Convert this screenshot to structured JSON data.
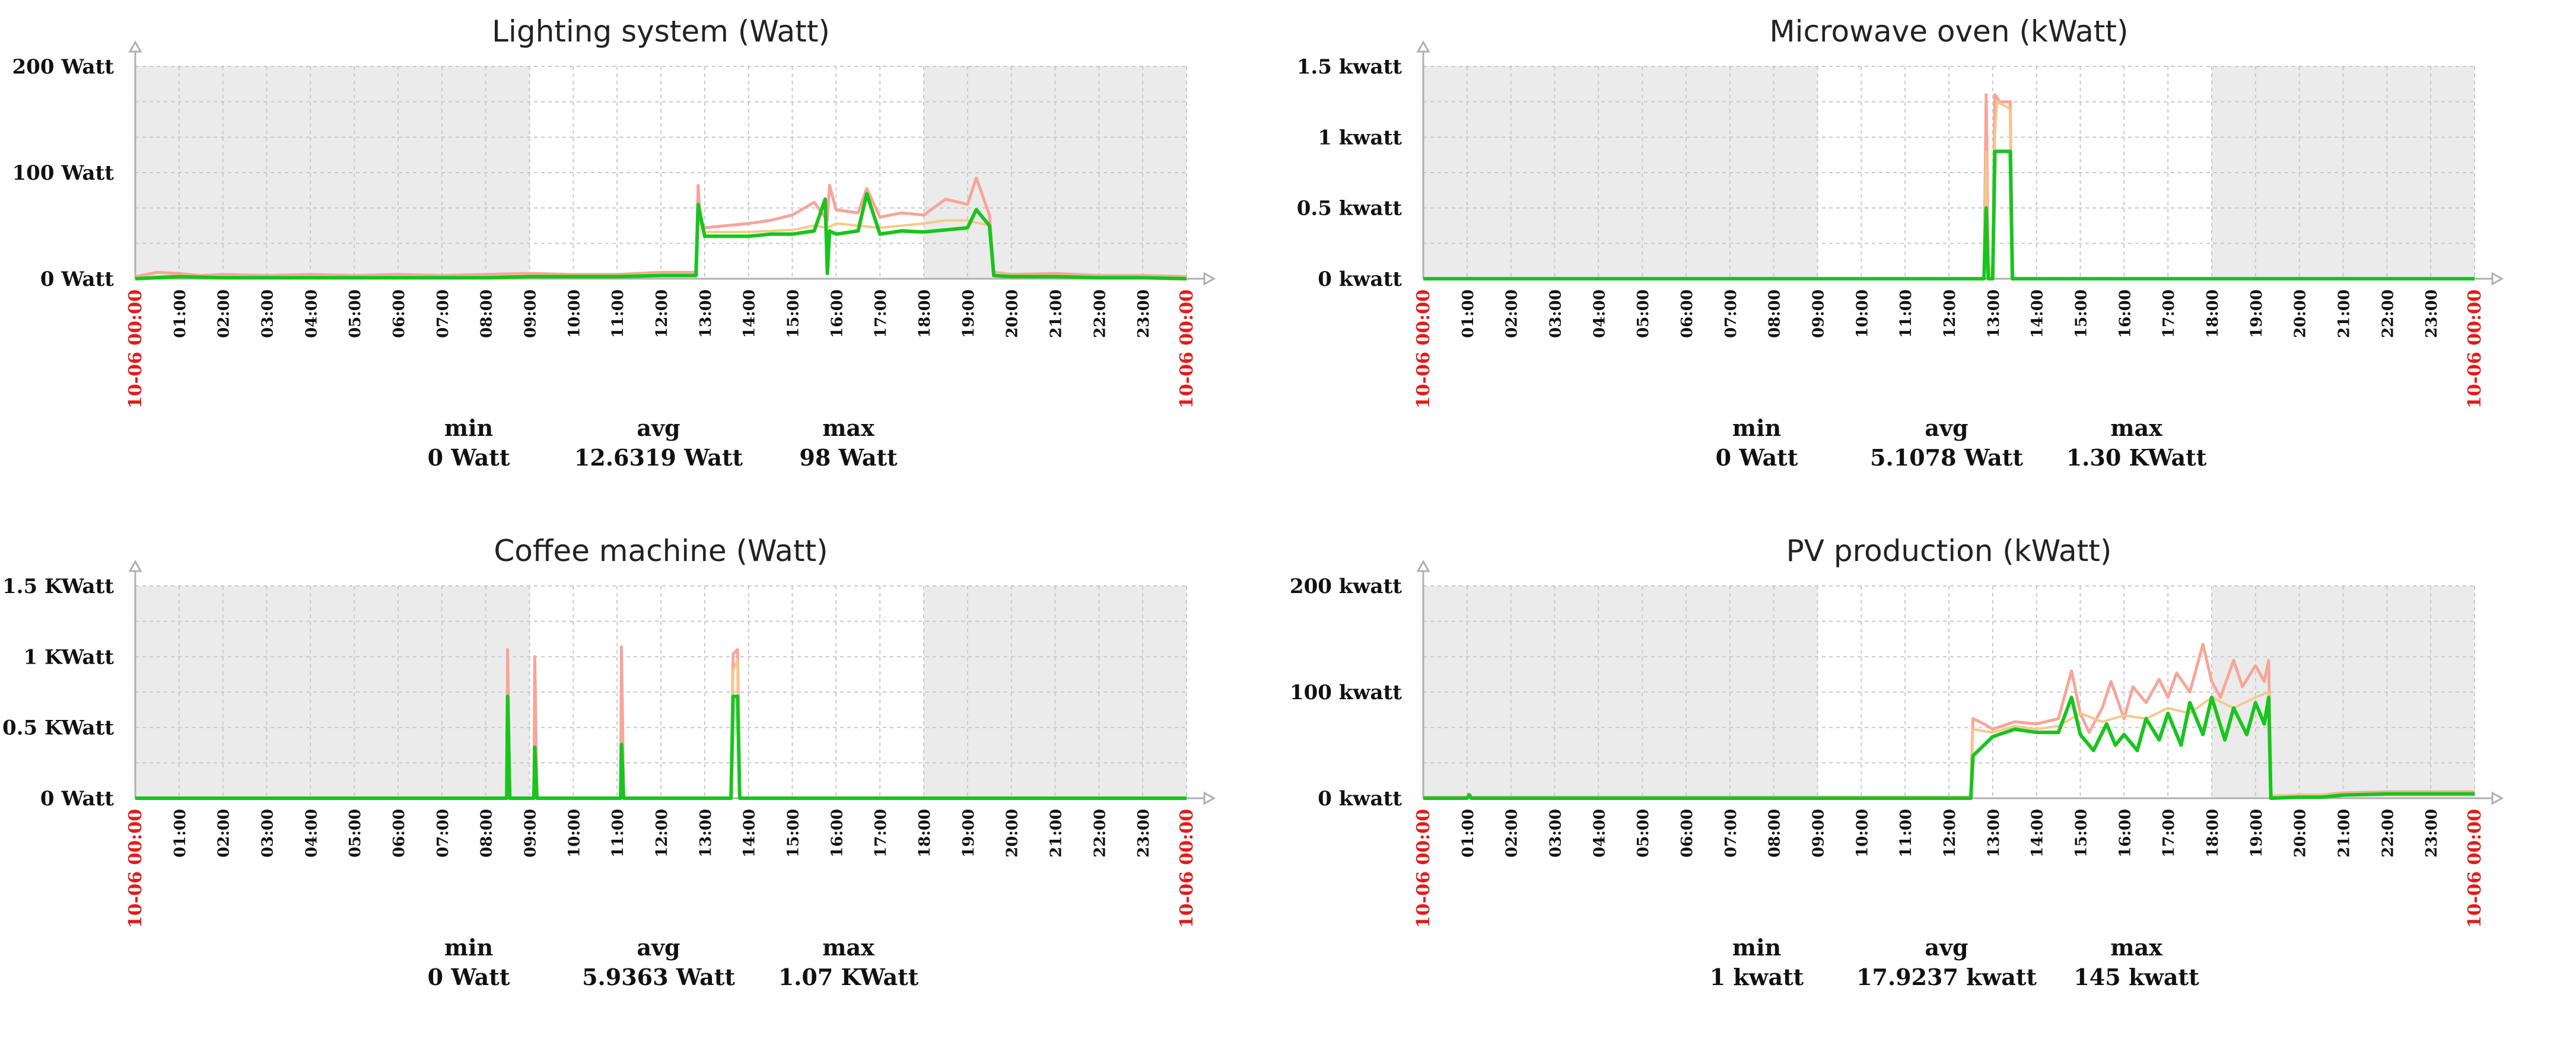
{
  "colors": {
    "night_shade": "#ebebeb",
    "grid": "#c9c9c9",
    "max_line": "#f7a59a",
    "avg_line": "#f5c88a",
    "min_line": "#17c51c",
    "edge_label": "#e41a1a",
    "axis": "#b0b0b0"
  },
  "chart_data": [
    {
      "type": "line",
      "title": "Lighting system (Watt)",
      "ylim": [
        0,
        200
      ],
      "y_ticks": [
        {
          "value": 0,
          "label": "0 Watt"
        },
        {
          "value": 100,
          "label": "100 Watt"
        },
        {
          "value": 200,
          "label": "200 Watt"
        }
      ],
      "xlim": [
        0,
        24
      ],
      "x_ticks": [
        "10-06 00:00",
        "01:00",
        "02:00",
        "03:00",
        "04:00",
        "05:00",
        "06:00",
        "07:00",
        "08:00",
        "09:00",
        "10:00",
        "11:00",
        "12:00",
        "13:00",
        "14:00",
        "15:00",
        "16:00",
        "17:00",
        "18:00",
        "19:00",
        "20:00",
        "21:00",
        "22:00",
        "23:00",
        "10-06 00:00"
      ],
      "shaded_ranges": [
        [
          0,
          9
        ],
        [
          18,
          24
        ]
      ],
      "grid": true,
      "series": [
        {
          "name": "max",
          "x": [
            0,
            0.5,
            1,
            1.5,
            2,
            3,
            4,
            5,
            6,
            7,
            8,
            9,
            10,
            11,
            12,
            12.8,
            12.85,
            12.9,
            13,
            14,
            14.5,
            15,
            15.5,
            15.8,
            15.85,
            16,
            16.5,
            16.7,
            17,
            17.5,
            18,
            18.5,
            19,
            19.2,
            19.5,
            19.6,
            20,
            21,
            22,
            23,
            24
          ],
          "y": [
            2,
            6,
            5,
            3,
            4,
            3,
            4,
            3,
            4,
            3,
            4,
            5,
            4,
            4,
            6,
            6,
            88,
            55,
            48,
            52,
            55,
            60,
            72,
            55,
            88,
            65,
            62,
            85,
            58,
            62,
            60,
            75,
            70,
            95,
            60,
            6,
            4,
            5,
            3,
            3,
            2
          ]
        },
        {
          "name": "avg",
          "x": [
            0,
            1,
            2,
            3,
            4,
            5,
            6,
            7,
            8,
            9,
            10,
            11,
            12,
            12.8,
            12.85,
            13,
            14,
            15,
            15.5,
            15.8,
            16,
            16.5,
            17,
            17.5,
            18,
            18.5,
            19,
            19.5,
            19.6,
            20,
            21,
            22,
            23,
            24
          ],
          "y": [
            1,
            3,
            2,
            2,
            2,
            2,
            2,
            2,
            2,
            3,
            3,
            3,
            4,
            4,
            55,
            44,
            44,
            46,
            50,
            48,
            52,
            50,
            48,
            50,
            52,
            55,
            55,
            50,
            5,
            3,
            3,
            2,
            2,
            1
          ]
        },
        {
          "name": "min",
          "x": [
            0,
            1,
            2,
            3,
            4,
            5,
            6,
            7,
            8,
            9,
            10,
            11,
            12,
            12.8,
            12.85,
            13,
            13.5,
            14,
            14.5,
            15,
            15.5,
            15.75,
            15.8,
            15.85,
            16,
            16.5,
            16.7,
            17,
            17.5,
            18,
            18.5,
            19,
            19.2,
            19.5,
            19.6,
            20,
            21,
            22,
            23,
            24
          ],
          "y": [
            0,
            2,
            1,
            1,
            1,
            1,
            1,
            1,
            1,
            2,
            2,
            2,
            3,
            3,
            70,
            40,
            40,
            40,
            42,
            42,
            45,
            75,
            5,
            45,
            42,
            45,
            80,
            42,
            45,
            44,
            46,
            48,
            65,
            50,
            3,
            2,
            2,
            1,
            1,
            0
          ]
        }
      ],
      "stats": {
        "min_label": "min",
        "avg_label": "avg",
        "max_label": "max",
        "min": "0 Watt",
        "avg": "12.6319 Watt",
        "max": "98 Watt"
      }
    },
    {
      "type": "line",
      "title": "Microwave oven (kWatt)",
      "ylim": [
        0,
        1.5
      ],
      "y_ticks": [
        {
          "value": 0,
          "label": "0 kwatt"
        },
        {
          "value": 0.5,
          "label": "0.5 kwatt"
        },
        {
          "value": 1,
          "label": "1 kwatt"
        },
        {
          "value": 1.5,
          "label": "1.5 kwatt"
        }
      ],
      "xlim": [
        0,
        24
      ],
      "x_ticks": [
        "10-06 00:00",
        "01:00",
        "02:00",
        "03:00",
        "04:00",
        "05:00",
        "06:00",
        "07:00",
        "08:00",
        "09:00",
        "10:00",
        "11:00",
        "12:00",
        "13:00",
        "14:00",
        "15:00",
        "16:00",
        "17:00",
        "18:00",
        "19:00",
        "20:00",
        "21:00",
        "22:00",
        "23:00",
        "10-06 00:00"
      ],
      "shaded_ranges": [
        [
          0,
          9
        ],
        [
          18,
          24
        ]
      ],
      "grid": true,
      "series": [
        {
          "name": "max",
          "x": [
            0,
            12.8,
            12.85,
            12.9,
            13.0,
            13.05,
            13.1,
            13.15,
            13.4,
            13.45,
            24
          ],
          "y": [
            0,
            0,
            1.3,
            0.1,
            0,
            1.3,
            1.28,
            1.25,
            1.25,
            0,
            0
          ]
        },
        {
          "name": "avg",
          "x": [
            0,
            12.8,
            12.85,
            12.9,
            13.0,
            13.05,
            13.1,
            13.4,
            13.45,
            24
          ],
          "y": [
            0,
            0,
            0.9,
            0.1,
            0,
            1.0,
            1.25,
            1.2,
            0,
            0
          ]
        },
        {
          "name": "min",
          "x": [
            0,
            12.8,
            12.85,
            12.9,
            13.0,
            13.05,
            13.4,
            13.45,
            24
          ],
          "y": [
            0,
            0,
            0.5,
            0,
            0,
            0.9,
            0.9,
            0,
            0
          ]
        }
      ],
      "stats": {
        "min_label": "min",
        "avg_label": "avg",
        "max_label": "max",
        "min": "0 Watt",
        "avg": "5.1078 Watt",
        "max": "1.30 KWatt"
      }
    },
    {
      "type": "line",
      "title": "Coffee machine (Watt)",
      "ylim": [
        0,
        1.5
      ],
      "y_ticks": [
        {
          "value": 0,
          "label": "0 Watt"
        },
        {
          "value": 0.5,
          "label": "0.5 KWatt"
        },
        {
          "value": 1,
          "label": "1 KWatt"
        },
        {
          "value": 1.5,
          "label": "1.5 KWatt"
        }
      ],
      "xlim": [
        0,
        24
      ],
      "x_ticks": [
        "10-06 00:00",
        "01:00",
        "02:00",
        "03:00",
        "04:00",
        "05:00",
        "06:00",
        "07:00",
        "08:00",
        "09:00",
        "10:00",
        "11:00",
        "12:00",
        "13:00",
        "14:00",
        "15:00",
        "16:00",
        "17:00",
        "18:00",
        "19:00",
        "20:00",
        "21:00",
        "22:00",
        "23:00",
        "10-06 00:00"
      ],
      "shaded_ranges": [
        [
          0,
          9
        ],
        [
          18,
          24
        ]
      ],
      "grid": true,
      "series": [
        {
          "name": "max",
          "x": [
            0,
            8.48,
            8.5,
            8.55,
            9.1,
            9.12,
            9.17,
            11.08,
            11.1,
            11.15,
            13.6,
            13.65,
            13.75,
            13.8,
            24
          ],
          "y": [
            0,
            0,
            1.05,
            0,
            0,
            1.0,
            0,
            0,
            1.07,
            0,
            0,
            1.02,
            1.05,
            0,
            0
          ]
        },
        {
          "name": "avg",
          "x": [
            0,
            13.6,
            13.65,
            13.75,
            13.8,
            24
          ],
          "y": [
            0,
            0,
            0.9,
            0.98,
            0,
            0
          ]
        },
        {
          "name": "min",
          "x": [
            0,
            8.48,
            8.5,
            8.55,
            9.1,
            9.12,
            9.17,
            11.08,
            11.1,
            11.15,
            13.6,
            13.65,
            13.75,
            13.8,
            24
          ],
          "y": [
            0,
            0,
            0.72,
            0,
            0,
            0.36,
            0,
            0,
            0.38,
            0,
            0,
            0.72,
            0.72,
            0,
            0
          ]
        }
      ],
      "stats": {
        "min_label": "min",
        "avg_label": "avg",
        "max_label": "max",
        "min": "0 Watt",
        "avg": "5.9363 Watt",
        "max": "1.07 KWatt"
      }
    },
    {
      "type": "line",
      "title": "PV production (kWatt)",
      "ylim": [
        0,
        200
      ],
      "y_ticks": [
        {
          "value": 0,
          "label": "0 kwatt"
        },
        {
          "value": 100,
          "label": "100 kwatt"
        },
        {
          "value": 200,
          "label": "200 kwatt"
        }
      ],
      "xlim": [
        0,
        24
      ],
      "x_ticks": [
        "10-06 00:00",
        "01:00",
        "02:00",
        "03:00",
        "04:00",
        "05:00",
        "06:00",
        "07:00",
        "08:00",
        "09:00",
        "10:00",
        "11:00",
        "12:00",
        "13:00",
        "14:00",
        "15:00",
        "16:00",
        "17:00",
        "18:00",
        "19:00",
        "20:00",
        "21:00",
        "22:00",
        "23:00",
        "10-06 00:00"
      ],
      "shaded_ranges": [
        [
          0,
          9
        ],
        [
          18,
          24
        ]
      ],
      "grid": true,
      "series": [
        {
          "name": "max",
          "x": [
            0,
            1,
            1.05,
            1.1,
            12.5,
            12.55,
            12.8,
            13,
            13.5,
            14,
            14.5,
            14.8,
            15,
            15.2,
            15.5,
            15.7,
            16,
            16.2,
            16.5,
            16.8,
            17,
            17.2,
            17.5,
            17.8,
            18,
            18.2,
            18.5,
            18.7,
            19,
            19.2,
            19.3,
            19.35,
            20,
            20.5,
            21,
            22,
            23,
            24
          ],
          "y": [
            1,
            1,
            4,
            1,
            1,
            75,
            70,
            65,
            72,
            70,
            75,
            120,
            80,
            62,
            85,
            110,
            75,
            105,
            90,
            112,
            95,
            118,
            100,
            145,
            110,
            95,
            130,
            105,
            125,
            110,
            130,
            2,
            3,
            3,
            5,
            6,
            6,
            6
          ]
        },
        {
          "name": "avg",
          "x": [
            0,
            12.5,
            12.55,
            13,
            13.5,
            14,
            14.5,
            15,
            15.5,
            16,
            16.5,
            17,
            17.5,
            18,
            18.5,
            19,
            19.3,
            19.35,
            20,
            20.5,
            21,
            22,
            23,
            24
          ],
          "y": [
            1,
            1,
            65,
            62,
            68,
            65,
            68,
            80,
            72,
            78,
            75,
            85,
            80,
            95,
            85,
            95,
            100,
            2,
            3,
            3,
            4,
            5,
            5,
            5
          ]
        },
        {
          "name": "min",
          "x": [
            0,
            1,
            1.05,
            1.1,
            12.5,
            12.55,
            12.8,
            13,
            13.5,
            14,
            14.5,
            14.8,
            15,
            15.3,
            15.6,
            15.8,
            16,
            16.3,
            16.5,
            16.8,
            17,
            17.3,
            17.5,
            17.8,
            18,
            18.3,
            18.5,
            18.8,
            19,
            19.2,
            19.3,
            19.35,
            20,
            20.5,
            21,
            22,
            23,
            24
          ],
          "y": [
            0,
            0,
            3,
            0,
            0,
            40,
            50,
            58,
            65,
            62,
            62,
            95,
            60,
            45,
            70,
            50,
            60,
            45,
            75,
            55,
            80,
            50,
            90,
            60,
            95,
            55,
            85,
            60,
            90,
            70,
            95,
            0,
            1,
            1,
            3,
            4,
            4,
            4
          ]
        }
      ],
      "stats": {
        "min_label": "min",
        "avg_label": "avg",
        "max_label": "max",
        "min": "1 kwatt",
        "avg": "17.9237 kwatt",
        "max": "145 kwatt"
      }
    }
  ]
}
